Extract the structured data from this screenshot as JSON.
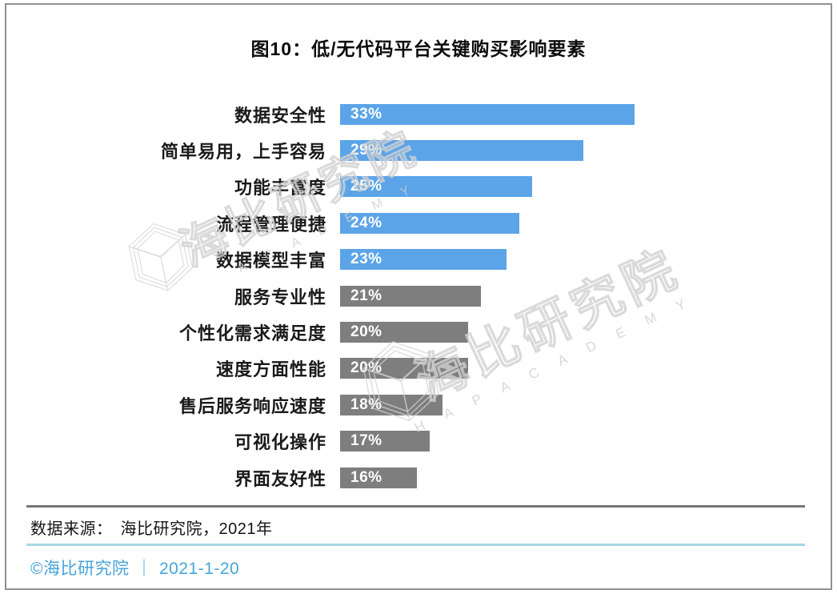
{
  "figure": {
    "title": "图10：低/无代码平台关键购买影响要素"
  },
  "chart_data": {
    "type": "bar",
    "orientation": "horizontal",
    "title": "图10：低/无代码平台关键购买影响要素",
    "categories": [
      "数据安全性",
      "简单易用，上手容易",
      "功能丰富度",
      "流程管理便捷",
      "数据模型丰富",
      "服务专业性",
      "个性化需求满足度",
      "速度方面性能",
      "售后服务响应速度",
      "可视化操作",
      "界面友好性"
    ],
    "values": [
      33,
      29,
      25,
      24,
      23,
      21,
      20,
      20,
      18,
      17,
      16
    ],
    "value_labels": [
      "33%",
      "29%",
      "25%",
      "24%",
      "23%",
      "21%",
      "20%",
      "20%",
      "18%",
      "17%",
      "16%"
    ],
    "bar_colors": [
      "#5ca4e8",
      "#5ca4e8",
      "#5ca4e8",
      "#5ca4e8",
      "#5ca4e8",
      "#7e7e7e",
      "#7e7e7e",
      "#7e7e7e",
      "#7e7e7e",
      "#7e7e7e",
      "#7e7e7e"
    ],
    "highlight_color": "#5ca4e8",
    "normal_color": "#7e7e7e",
    "unit": "%",
    "xlim": [
      10,
      33
    ],
    "grid": false,
    "legend": "none",
    "value_label_position": "inside-left",
    "value_label_color": "#ffffff"
  },
  "source": {
    "prefix": "数据来源：",
    "value": "海比研究院，2021年"
  },
  "footer": {
    "copyright": "©海比研究院",
    "separator": "｜",
    "date": "2021-1-20",
    "text_color": "#47a4da"
  },
  "watermark": {
    "zh_text": "海比研究院",
    "latin_text_a": "A C A D E M Y",
    "latin_text_b": "H A P    A C A D E M Y",
    "logo": "cube-logo",
    "color": "#d2d2d2"
  }
}
